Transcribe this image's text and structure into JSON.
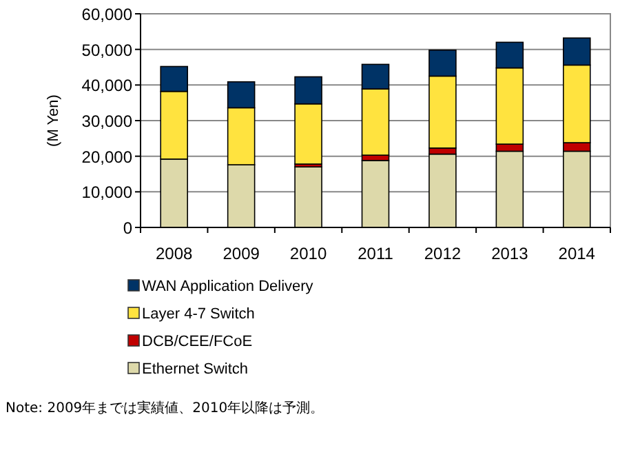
{
  "chart_data": {
    "type": "bar",
    "stacked": true,
    "ylabel": "(M Yen)",
    "categories": [
      "2008",
      "2009",
      "2010",
      "2011",
      "2012",
      "2013",
      "2014"
    ],
    "series": [
      {
        "name": "Ethernet Switch",
        "color": "#ddd9aa",
        "values": [
          19200,
          17600,
          17000,
          18800,
          20600,
          21400,
          21400
        ]
      },
      {
        "name": "DCB/CEE/FCoE",
        "color": "#c00000",
        "values": [
          0,
          0,
          800,
          1500,
          1700,
          2000,
          2400
        ]
      },
      {
        "name": "Layer 4-7 Switch",
        "color": "#ffe33f",
        "values": [
          19000,
          16000,
          16900,
          18600,
          20200,
          21400,
          21800
        ]
      },
      {
        "name": "WAN Application Delivery",
        "color": "#003366",
        "values": [
          7000,
          7300,
          7600,
          6900,
          7300,
          7200,
          7600
        ]
      }
    ],
    "ylim": [
      0,
      60000
    ],
    "yticks": [
      {
        "value": 0,
        "label": "0"
      },
      {
        "value": 10000,
        "label": "10,000"
      },
      {
        "value": 20000,
        "label": "20,000"
      },
      {
        "value": 30000,
        "label": "30,000"
      },
      {
        "value": 40000,
        "label": "40,000"
      },
      {
        "value": 50000,
        "label": "50,000"
      },
      {
        "value": 60000,
        "label": "60,000"
      }
    ],
    "grid": "y",
    "legend": "bottom",
    "annotations": [
      "Note: 2009年までは実績値、2010年以降は予測。"
    ]
  }
}
